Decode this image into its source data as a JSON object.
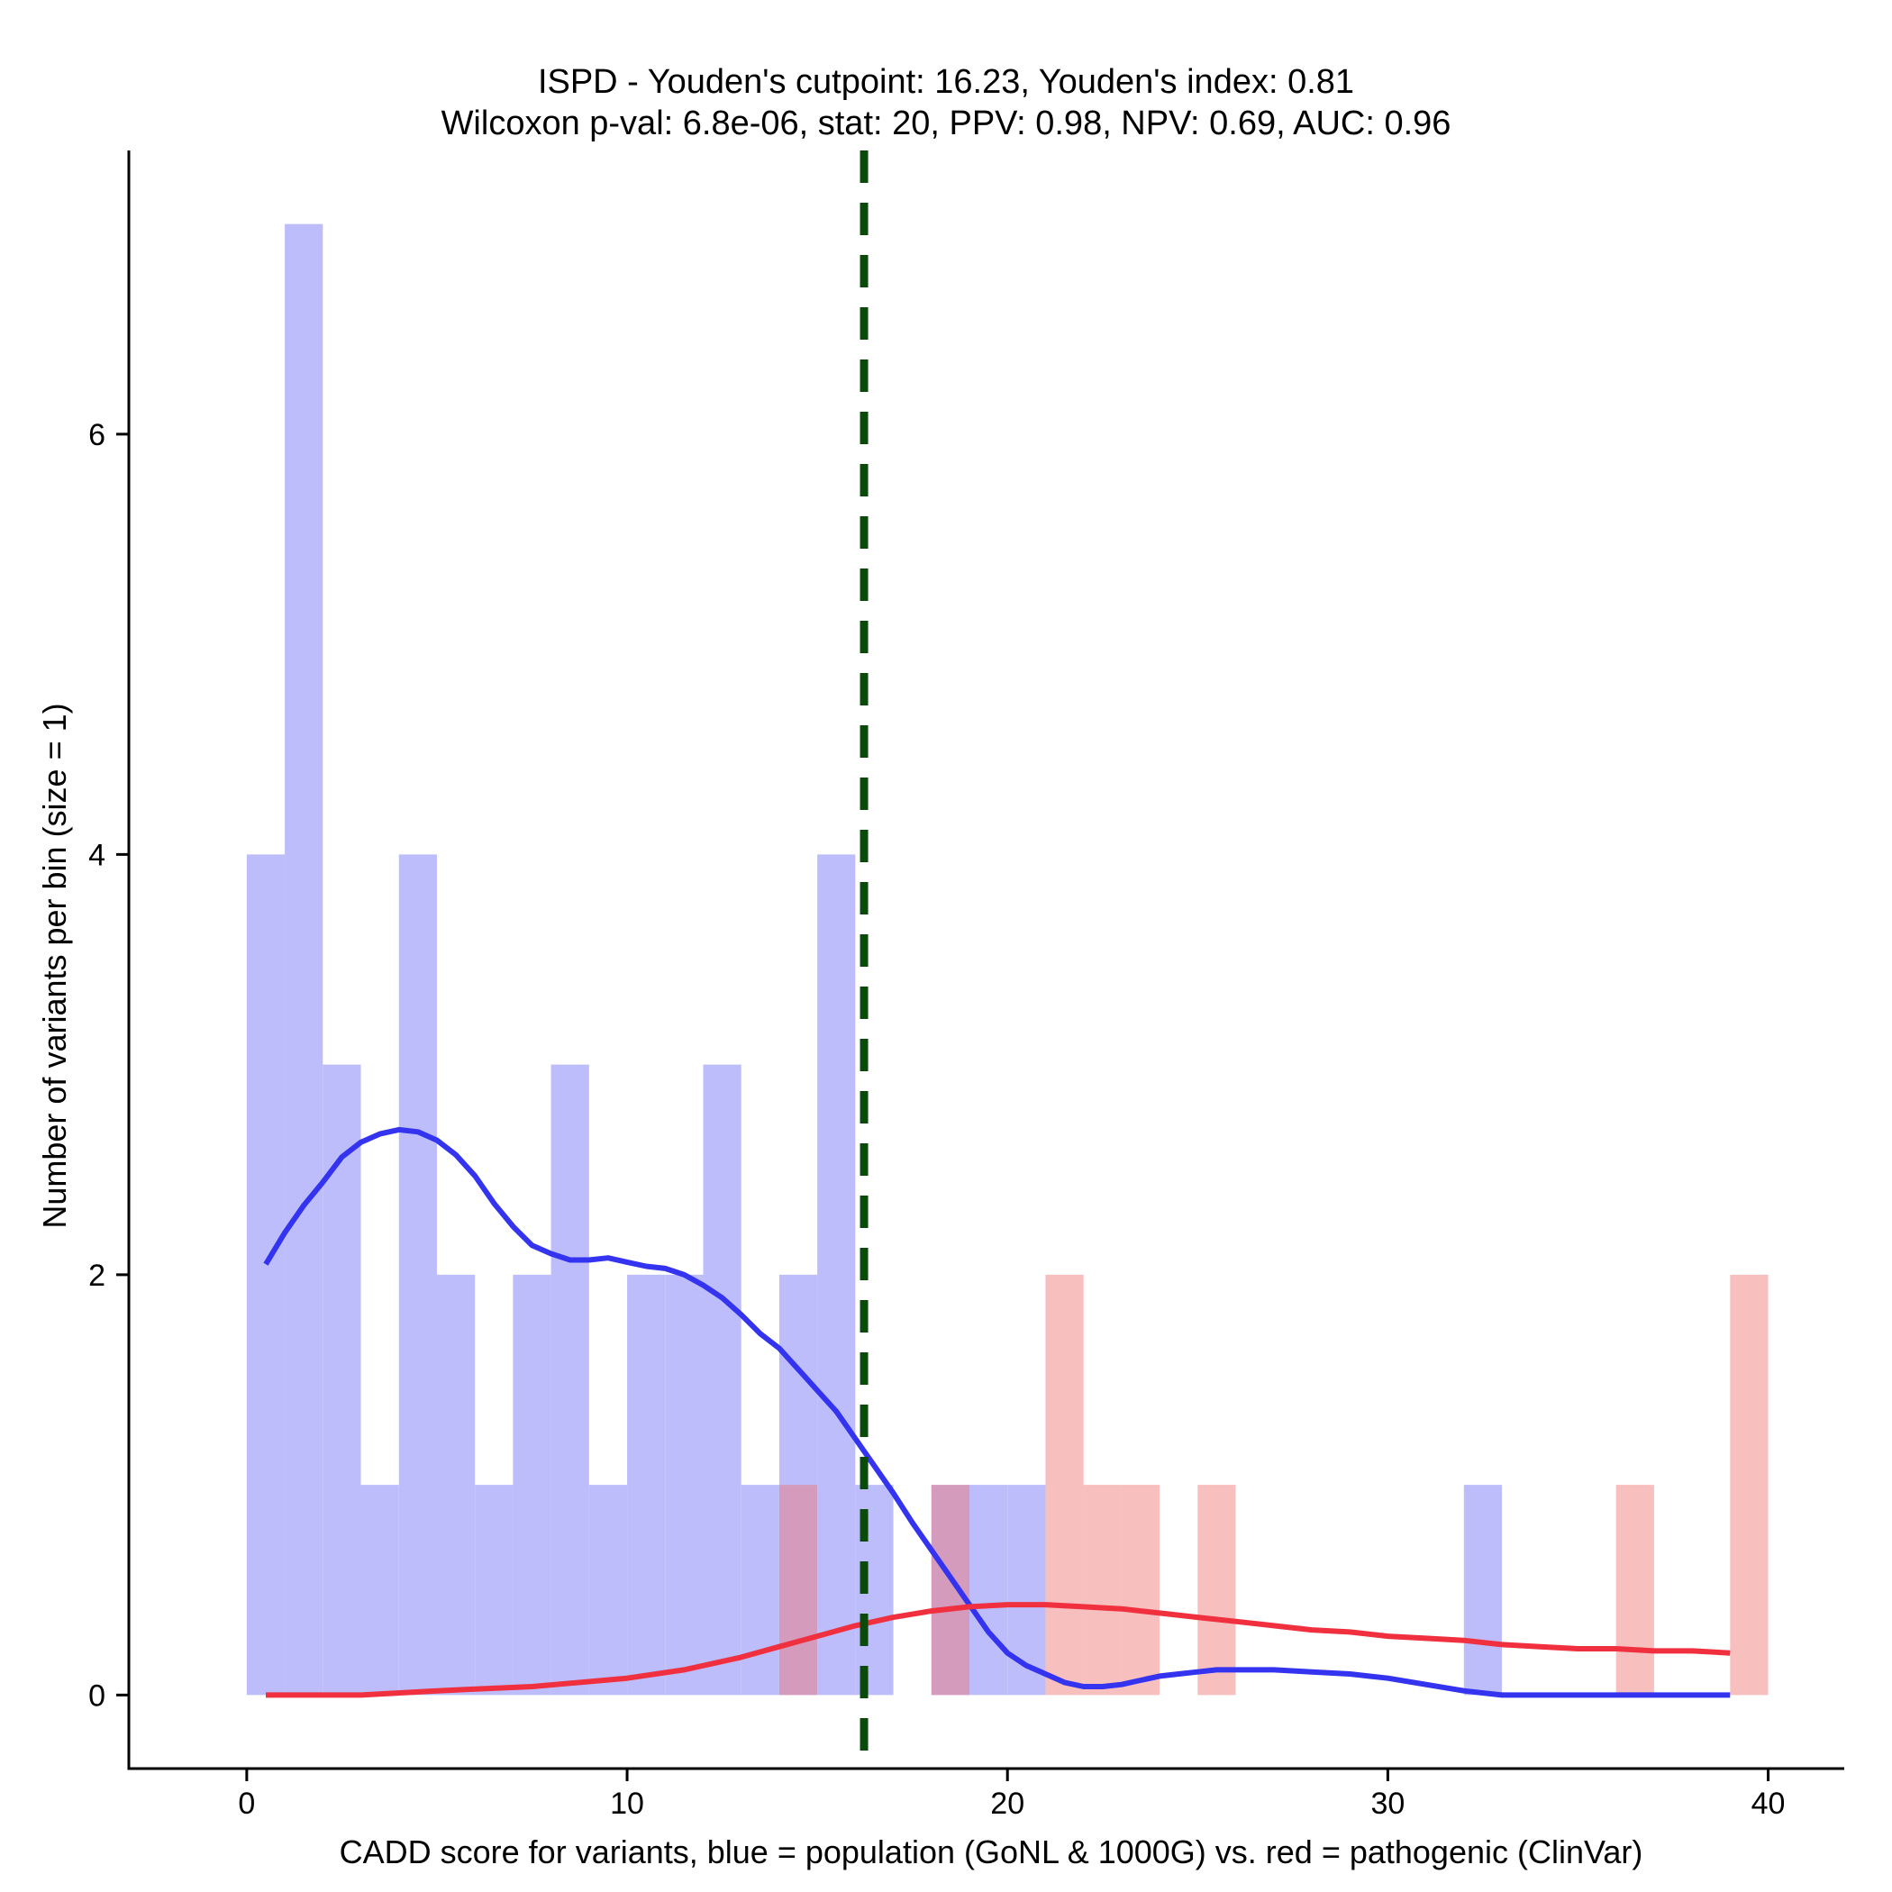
{
  "chart_data": {
    "type": "bar",
    "title": "ISPD - Youden's cutpoint: 16.23, Youden's index: 0.81",
    "subtitle": "Wilcoxon p-val: 6.8e-06, stat: 20, PPV: 0.98, NPV: 0.69, AUC: 0.96",
    "xlabel": "CADD score for variants, blue = population (GoNL & 1000G) vs. red = pathogenic (ClinVar)",
    "ylabel": "Number of variants per bin (size = 1)",
    "xlim": [
      -3.1,
      42.0
    ],
    "ylim": [
      -0.35,
      7.35
    ],
    "xticks": [
      0,
      10,
      20,
      30,
      40
    ],
    "xtick_labels": [
      "0",
      "10",
      "20",
      "30",
      "40"
    ],
    "yticks": [
      0,
      2,
      4,
      6
    ],
    "ytick_labels": [
      "0",
      "2",
      "4",
      "6"
    ],
    "bin_size": 1,
    "cutpoint": 16.23,
    "colors": {
      "population_bar": "#bdbdfb",
      "pathogenic_bar": "#fbbcbc",
      "population_line": "#3333f0",
      "pathogenic_line": "#f0303e",
      "cutpoint_line": "#0a4a0a"
    },
    "series": [
      {
        "name": "population (GoNL & 1000G)",
        "kind": "histogram",
        "bins": [
          {
            "start": 0,
            "count": 4
          },
          {
            "start": 1,
            "count": 7
          },
          {
            "start": 2,
            "count": 3
          },
          {
            "start": 3,
            "count": 1
          },
          {
            "start": 4,
            "count": 4
          },
          {
            "start": 5,
            "count": 2
          },
          {
            "start": 6,
            "count": 1
          },
          {
            "start": 7,
            "count": 2
          },
          {
            "start": 8,
            "count": 3
          },
          {
            "start": 9,
            "count": 1
          },
          {
            "start": 10,
            "count": 2
          },
          {
            "start": 11,
            "count": 2
          },
          {
            "start": 12,
            "count": 3
          },
          {
            "start": 13,
            "count": 1
          },
          {
            "start": 14,
            "count": 2
          },
          {
            "start": 15,
            "count": 4
          },
          {
            "start": 16,
            "count": 1
          },
          {
            "start": 18,
            "count": 1
          },
          {
            "start": 19,
            "count": 1
          },
          {
            "start": 20,
            "count": 1
          },
          {
            "start": 32,
            "count": 1
          }
        ]
      },
      {
        "name": "pathogenic (ClinVar)",
        "kind": "histogram",
        "bins": [
          {
            "start": 14,
            "count": 1
          },
          {
            "start": 18,
            "count": 1
          },
          {
            "start": 21,
            "count": 2
          },
          {
            "start": 22,
            "count": 1
          },
          {
            "start": 23,
            "count": 1
          },
          {
            "start": 25,
            "count": 1
          },
          {
            "start": 36,
            "count": 1
          },
          {
            "start": 39,
            "count": 2
          }
        ]
      },
      {
        "name": "population density",
        "kind": "line",
        "x": [
          0.5,
          1,
          1.5,
          2,
          2.5,
          3,
          3.5,
          4,
          4.5,
          5,
          5.5,
          6,
          6.5,
          7,
          7.5,
          8,
          8.5,
          9,
          9.5,
          10,
          10.5,
          11,
          11.5,
          12,
          12.5,
          13,
          13.5,
          14,
          14.5,
          15,
          15.5,
          16,
          16.5,
          17,
          17.5,
          18,
          18.5,
          19,
          19.5,
          20,
          20.5,
          21,
          21.5,
          22,
          22.5,
          23,
          23.5,
          24,
          24.5,
          25,
          25.5,
          26,
          27,
          28,
          29,
          30,
          31,
          32,
          33,
          34,
          35,
          36,
          37,
          38,
          39
        ],
        "y": [
          2.05,
          2.2,
          2.33,
          2.44,
          2.56,
          2.63,
          2.67,
          2.69,
          2.68,
          2.64,
          2.57,
          2.47,
          2.34,
          2.23,
          2.14,
          2.1,
          2.07,
          2.07,
          2.08,
          2.06,
          2.04,
          2.03,
          2.0,
          1.95,
          1.89,
          1.81,
          1.72,
          1.65,
          1.55,
          1.45,
          1.35,
          1.22,
          1.09,
          0.96,
          0.82,
          0.69,
          0.56,
          0.43,
          0.3,
          0.2,
          0.14,
          0.1,
          0.06,
          0.04,
          0.04,
          0.05,
          0.07,
          0.09,
          0.1,
          0.11,
          0.12,
          0.12,
          0.12,
          0.11,
          0.1,
          0.08,
          0.05,
          0.02,
          0.0,
          0.0,
          0.0,
          0.0,
          0.0,
          0.0,
          0.0
        ]
      },
      {
        "name": "pathogenic density",
        "kind": "line",
        "x": [
          0.5,
          3,
          5,
          7.5,
          10,
          11.5,
          13,
          14,
          15,
          16,
          17,
          18,
          19,
          20,
          21,
          22,
          23,
          24,
          25,
          26,
          27,
          28,
          29,
          30,
          31,
          32,
          33,
          34,
          35,
          36,
          37,
          38,
          39
        ],
        "y": [
          0.0,
          0.0,
          0.02,
          0.04,
          0.08,
          0.12,
          0.18,
          0.23,
          0.28,
          0.33,
          0.37,
          0.4,
          0.42,
          0.43,
          0.43,
          0.42,
          0.41,
          0.39,
          0.37,
          0.35,
          0.33,
          0.31,
          0.3,
          0.28,
          0.27,
          0.26,
          0.24,
          0.23,
          0.22,
          0.22,
          0.21,
          0.21,
          0.2
        ]
      }
    ]
  }
}
